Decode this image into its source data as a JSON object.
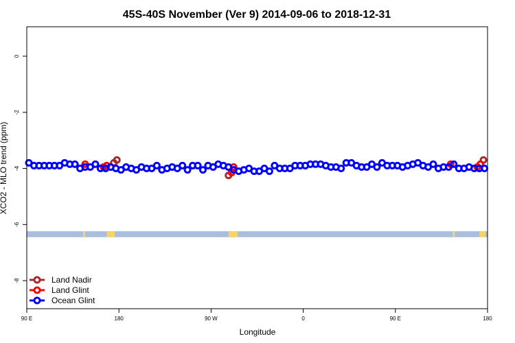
{
  "chart_data": {
    "type": "scatter",
    "title": "45S-40S November (Ver 9)   2014-09-06 to 2018-12-31",
    "xlabel": "Longitude",
    "ylabel": "XCO2 - MLO trend (ppm)",
    "xticks": [
      {
        "value": 0,
        "label": "90 E"
      },
      {
        "value": 90,
        "label": "180"
      },
      {
        "value": 180,
        "label": "90 W"
      },
      {
        "value": 270,
        "label": "0"
      },
      {
        "value": 360,
        "label": "90 E"
      },
      {
        "value": 450,
        "label": "180"
      }
    ],
    "yticks": [
      0,
      -2,
      -4,
      -6,
      -8
    ],
    "xlim": [
      0,
      450
    ],
    "ylim": [
      -9.0,
      1.05
    ],
    "colors": {
      "land_nadir": "#a52a2a",
      "land_glint": "#ff0000",
      "ocean_glint": "#0000ff",
      "ocean_band": "#a7bedf",
      "land_band": "#f6d36b"
    },
    "land_band_y": [
      -6.24,
      -6.45
    ],
    "land_band_segments": [
      [
        55,
        57
      ],
      [
        78,
        86
      ],
      [
        197,
        206
      ],
      [
        416,
        418
      ],
      [
        442,
        448
      ]
    ],
    "legend": {
      "position": "bottom-left",
      "entries": [
        {
          "name": "Land Nadir",
          "key": "land_nadir"
        },
        {
          "name": "Land Glint",
          "key": "land_glint"
        },
        {
          "name": "Ocean Glint",
          "key": "ocean_glint"
        }
      ]
    },
    "series": [
      {
        "name": "Land Nadir",
        "key": "land_nadir",
        "x": [
          85,
          88,
          197,
          446
        ],
        "y": [
          -3.8,
          -3.7,
          -4.25,
          -3.7
        ]
      },
      {
        "name": "Land Glint",
        "key": "land_glint",
        "x": [
          57,
          75,
          78,
          82,
          200,
          202,
          414,
          440,
          443
        ],
        "y": [
          -3.85,
          -3.95,
          -3.9,
          -3.95,
          -4.15,
          -3.95,
          -3.85,
          -3.95,
          -3.85
        ]
      },
      {
        "name": "Ocean Glint",
        "key": "ocean_glint",
        "x": [
          2,
          7,
          12,
          17,
          22,
          27,
          32,
          37,
          42,
          47,
          52,
          57,
          62,
          67,
          72,
          77,
          82,
          87,
          92,
          97,
          102,
          107,
          112,
          117,
          122,
          127,
          132,
          137,
          142,
          147,
          152,
          157,
          162,
          167,
          172,
          177,
          182,
          187,
          192,
          197,
          202,
          207,
          212,
          217,
          222,
          227,
          232,
          237,
          242,
          247,
          252,
          257,
          262,
          267,
          272,
          277,
          282,
          287,
          292,
          297,
          302,
          307,
          312,
          317,
          322,
          327,
          332,
          337,
          342,
          347,
          352,
          357,
          362,
          367,
          372,
          377,
          382,
          387,
          392,
          397,
          402,
          407,
          412,
          417,
          422,
          427,
          432,
          437,
          442,
          447
        ],
        "y": [
          -3.8,
          -3.9,
          -3.9,
          -3.9,
          -3.9,
          -3.9,
          -3.9,
          -3.8,
          -3.85,
          -3.85,
          -4.0,
          -3.95,
          -3.95,
          -3.85,
          -4.0,
          -4.0,
          -3.95,
          -4.0,
          -4.05,
          -3.95,
          -4.0,
          -4.05,
          -3.95,
          -4.0,
          -4.0,
          -3.9,
          -4.05,
          -4.0,
          -3.95,
          -4.0,
          -3.9,
          -4.05,
          -3.9,
          -3.9,
          -4.05,
          -3.9,
          -3.95,
          -3.85,
          -3.9,
          -3.95,
          -4.05,
          -4.1,
          -4.05,
          -4.0,
          -4.1,
          -4.1,
          -4.0,
          -4.1,
          -3.9,
          -4.0,
          -4.0,
          -4.0,
          -3.9,
          -3.9,
          -3.9,
          -3.85,
          -3.85,
          -3.85,
          -3.9,
          -3.95,
          -3.95,
          -4.0,
          -3.8,
          -3.8,
          -3.9,
          -3.95,
          -3.95,
          -3.85,
          -3.95,
          -3.8,
          -3.9,
          -3.9,
          -3.9,
          -3.95,
          -3.9,
          -3.85,
          -3.8,
          -3.9,
          -3.95,
          -3.85,
          -4.0,
          -3.95,
          -3.95,
          -3.85,
          -4.0,
          -4.0,
          -3.95,
          -4.0,
          -4.0,
          -4.0
        ]
      }
    ]
  }
}
